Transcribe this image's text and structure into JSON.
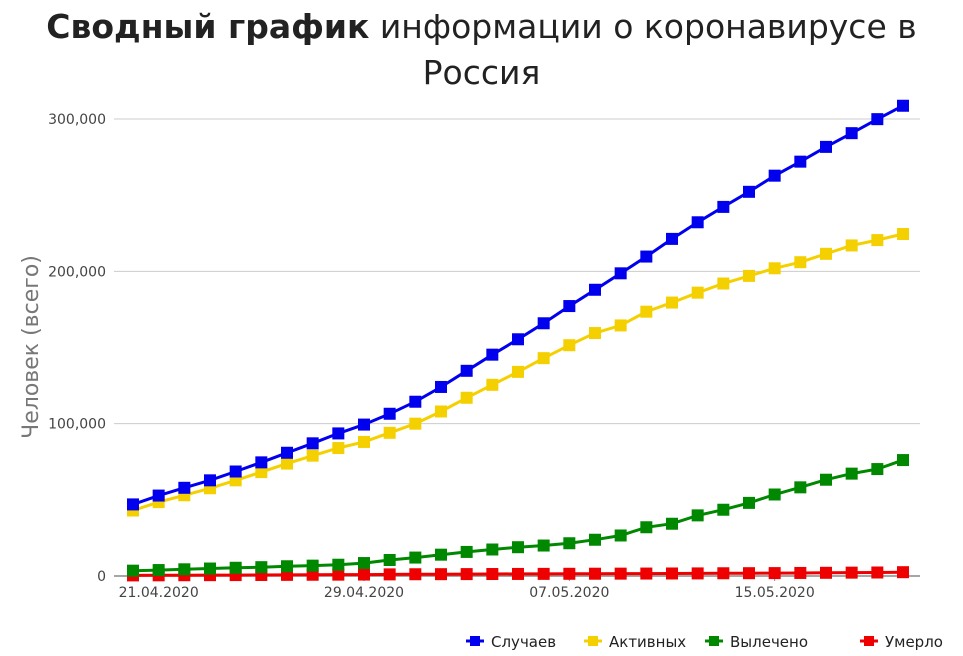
{
  "chart_data": {
    "type": "line",
    "title_bold": "Сводный график",
    "title_rest": "информации о коронавирусе в",
    "title_line2": "Россия",
    "ylabel": "Человек (всего)",
    "xlabel": "",
    "ylim": [
      0,
      300000
    ],
    "yticks": [
      0,
      100000,
      200000,
      300000
    ],
    "ytick_labels": [
      "0",
      "100,000",
      "200,000",
      "300,000"
    ],
    "xtick_labels": [
      "21.04.2020",
      "29.04.2020",
      "07.05.2020",
      "15.05.2020"
    ],
    "xtick_index": [
      1,
      9,
      17,
      25
    ],
    "x": [
      "20.04.2020",
      "21.04.2020",
      "22.04.2020",
      "23.04.2020",
      "24.04.2020",
      "25.04.2020",
      "26.04.2020",
      "27.04.2020",
      "28.04.2020",
      "29.04.2020",
      "30.04.2020",
      "01.05.2020",
      "02.05.2020",
      "03.05.2020",
      "04.05.2020",
      "05.05.2020",
      "06.05.2020",
      "07.05.2020",
      "08.05.2020",
      "09.05.2020",
      "10.05.2020",
      "11.05.2020",
      "12.05.2020",
      "13.05.2020",
      "14.05.2020",
      "15.05.2020",
      "16.05.2020",
      "17.05.2020",
      "18.05.2020",
      "19.05.2020",
      "20.05.2020"
    ],
    "grid": true,
    "legend_position": "bottom-right",
    "series": [
      {
        "name": "Случаев",
        "color": "#0000ee",
        "values": [
          47000,
          52800,
          57900,
          62800,
          68600,
          74600,
          80900,
          87100,
          93600,
          99400,
          106500,
          114400,
          124100,
          134700,
          145300,
          155400,
          165900,
          177200,
          187900,
          198700,
          209700,
          221300,
          232200,
          242300,
          252200,
          262800,
          272000,
          281700,
          290700,
          299900,
          308700
        ]
      },
      {
        "name": "Активных",
        "color": "#f5d000",
        "values": [
          43000,
          48500,
          53000,
          57600,
          62800,
          68200,
          73800,
          79000,
          84000,
          88000,
          94000,
          100000,
          108000,
          117000,
          125500,
          134000,
          143000,
          151500,
          159500,
          164500,
          173500,
          179500,
          186000,
          192000,
          197000,
          202000,
          206000,
          211500,
          217000,
          220500,
          224500
        ]
      },
      {
        "name": "Вылечено",
        "color": "#008800",
        "values": [
          3500,
          3900,
          4400,
          4900,
          5400,
          5800,
          6400,
          6800,
          7400,
          8500,
          10500,
          12100,
          14000,
          15800,
          17400,
          18900,
          20000,
          21500,
          23800,
          26600,
          32000,
          34300,
          39800,
          43500,
          48000,
          53500,
          58200,
          63200,
          67200,
          70200,
          76100
        ]
      },
      {
        "name": "Умерло",
        "color": "#ee0000",
        "values": [
          400,
          450,
          510,
          560,
          610,
          680,
          750,
          820,
          890,
          950,
          1070,
          1150,
          1200,
          1250,
          1300,
          1350,
          1400,
          1450,
          1500,
          1550,
          1600,
          1650,
          1700,
          1800,
          1850,
          1900,
          2000,
          2100,
          2200,
          2300,
          2500
        ]
      }
    ]
  }
}
